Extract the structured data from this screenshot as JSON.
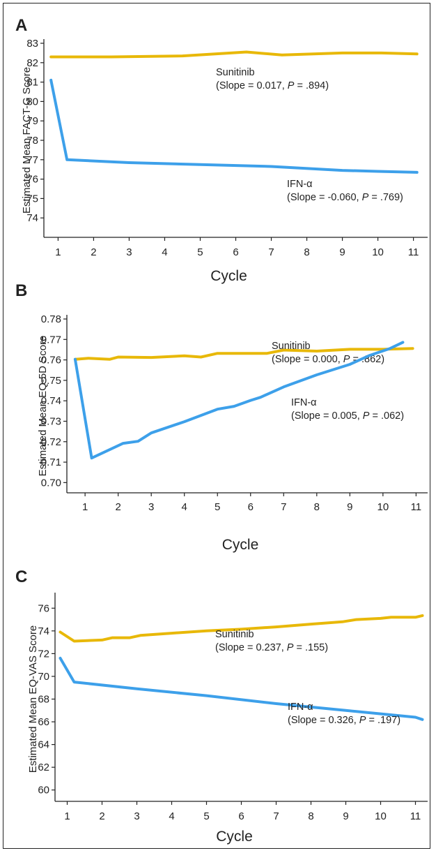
{
  "colors": {
    "sunitinib": "#E8B808",
    "ifn": "#3DA0EA",
    "axis": "#222222"
  },
  "chart_data": [
    {
      "panel": "A",
      "type": "line",
      "ylabel": "Estimated Mean FACT-G Score",
      "xlabel": "Cycle",
      "ylim": [
        73,
        83
      ],
      "yticks": [
        74,
        75,
        76,
        77,
        78,
        79,
        80,
        81,
        82,
        83
      ],
      "xlim": [
        0.6,
        11.4
      ],
      "xticks": [
        1,
        2,
        3,
        4,
        5,
        6,
        7,
        8,
        9,
        10,
        11
      ],
      "series": [
        {
          "name": "Sunitinib",
          "slope_text": "(Slope = 0.017, ",
          "p_text": " = .894)",
          "x": [
            0.8,
            2.5,
            4.5,
            6.3,
            7.3,
            9.0,
            10.1,
            11.1
          ],
          "y": [
            82.3,
            82.3,
            82.35,
            82.55,
            82.4,
            82.5,
            82.5,
            82.45
          ]
        },
        {
          "name": "IFN-α",
          "slope_text": "(Slope = -0.060, ",
          "p_text": " = .769)",
          "x": [
            0.8,
            1.25,
            3.0,
            5.0,
            7.0,
            9.0,
            10.0,
            11.1
          ],
          "y": [
            81.1,
            77.0,
            76.85,
            76.75,
            76.65,
            76.45,
            76.4,
            76.35
          ]
        }
      ]
    },
    {
      "panel": "B",
      "type": "line",
      "ylabel": "Estimated Mean EQ-5D Score",
      "xlabel": "Cycle",
      "ylim": [
        0.695,
        0.78
      ],
      "yticks": [
        0.7,
        0.71,
        0.72,
        0.73,
        0.74,
        0.75,
        0.76,
        0.77,
        0.78
      ],
      "ytick_labels": [
        "0.70",
        "0.71",
        "0.72",
        "0.73",
        "0.74",
        "0.75",
        "0.76",
        "0.77",
        "0.78"
      ],
      "xlim": [
        0.45,
        11.35
      ],
      "xticks": [
        1,
        2,
        3,
        4,
        5,
        6,
        7,
        8,
        9,
        10,
        11
      ],
      "series": [
        {
          "name": "Sunitinib",
          "slope_text": "(Slope = 0.000, ",
          "p_text": " = .862)",
          "x": [
            0.7,
            1.1,
            1.75,
            2.0,
            3.0,
            4.0,
            4.5,
            5.0,
            6.0,
            6.5,
            7.0,
            8.0,
            9.0,
            10.0,
            10.9
          ],
          "y": [
            0.7603,
            0.7608,
            0.7603,
            0.7614,
            0.7612,
            0.762,
            0.7614,
            0.7632,
            0.7632,
            0.7632,
            0.7648,
            0.7643,
            0.7652,
            0.7652,
            0.7656
          ]
        },
        {
          "name": "IFN-α",
          "slope_text": "(Slope = 0.005, ",
          "p_text": " = .062)",
          "x": [
            0.7,
            1.2,
            2.15,
            2.6,
            3.0,
            4.0,
            5.0,
            5.5,
            6.0,
            6.3,
            7.0,
            8.0,
            9.0,
            9.6,
            10.2,
            10.6
          ],
          "y": [
            0.7603,
            0.712,
            0.7192,
            0.7202,
            0.7243,
            0.7298,
            0.7359,
            0.7373,
            0.7402,
            0.7417,
            0.7468,
            0.7527,
            0.7578,
            0.7622,
            0.7655,
            0.7686
          ]
        }
      ]
    },
    {
      "panel": "C",
      "type": "line",
      "ylabel": "Estimated Mean EQ-VAS Score",
      "xlabel": "Cycle",
      "ylim": [
        59,
        77
      ],
      "yticks": [
        60,
        62,
        64,
        66,
        68,
        70,
        72,
        74,
        76
      ],
      "xlim": [
        0.65,
        11.35
      ],
      "xticks": [
        1,
        2,
        3,
        4,
        5,
        6,
        7,
        8,
        9,
        10,
        11
      ],
      "series": [
        {
          "name": "Sunitinib",
          "slope_text": "(Slope = 0.237, ",
          "p_text": " = .155)",
          "x": [
            0.8,
            1.2,
            2.0,
            2.3,
            2.8,
            3.1,
            4.0,
            5.0,
            6.0,
            7.0,
            8.0,
            8.9,
            9.3,
            10.0,
            10.3,
            11.0,
            11.2
          ],
          "y": [
            73.9,
            73.1,
            73.2,
            73.4,
            73.4,
            73.6,
            73.8,
            74.0,
            74.15,
            74.35,
            74.6,
            74.8,
            75.0,
            75.1,
            75.2,
            75.2,
            75.35
          ]
        },
        {
          "name": "IFN-α",
          "slope_text": "(Slope = 0.326, ",
          "p_text": " = .197)",
          "x": [
            0.8,
            1.2,
            3.0,
            5.0,
            7.0,
            9.0,
            11.0,
            11.2
          ],
          "y": [
            71.6,
            69.5,
            68.9,
            68.3,
            67.6,
            67.0,
            66.4,
            66.2
          ]
        }
      ]
    }
  ],
  "labels": {
    "p_symbol": "P"
  }
}
